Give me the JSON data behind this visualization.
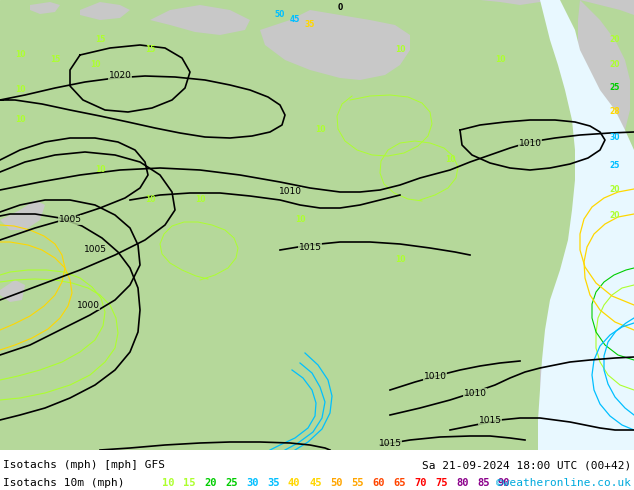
{
  "title_left": "Isotachs (mph) [mph] GFS",
  "title_right": "Sa 21-09-2024 18:00 UTC (00+42)",
  "legend_label": "Isotachs 10m (mph)",
  "copyright": "©weatheronline.co.uk",
  "legend_values": [
    10,
    15,
    20,
    25,
    30,
    35,
    40,
    45,
    50,
    55,
    60,
    65,
    70,
    75,
    80,
    85,
    90
  ],
  "legend_colors": [
    "#adff2f",
    "#adff2f",
    "#00cd00",
    "#00cd00",
    "#00bfff",
    "#00bfff",
    "#ffd700",
    "#ffd700",
    "#ffa500",
    "#ffa500",
    "#ff4500",
    "#ff4500",
    "#ff0000",
    "#ff0000",
    "#8b008b",
    "#8b008b",
    "#8b008b"
  ],
  "land_color": "#b5d89a",
  "sea_color": "#d3e8d3",
  "grey_color": "#c8c8c8",
  "fig_width": 6.34,
  "fig_height": 4.9,
  "dpi": 100
}
